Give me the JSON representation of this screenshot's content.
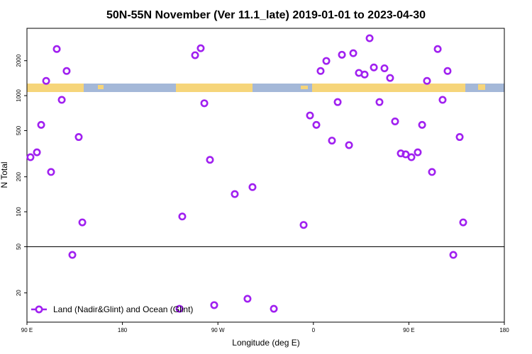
{
  "chart_data": {
    "type": "scatter",
    "title": "50N-55N November (Ver 11.1_late)   2019-01-01 to 2023-04-30",
    "x_label": "Longitude (deg E)",
    "y_label": "N Total",
    "log_y": true,
    "xlim": [
      90,
      540
    ],
    "ylim": [
      11.2,
      3800
    ],
    "xticks": [
      {
        "value": 90,
        "label": "90 E"
      },
      180,
      {
        "value": 270,
        "label": "90 W"
      },
      {
        "value": 360,
        "label": "0"
      },
      {
        "value": 450,
        "label": "90 E"
      },
      {
        "value": 540,
        "label": "180"
      }
    ],
    "yticks": [
      20,
      50,
      100,
      200,
      500,
      1000,
      2000
    ],
    "reference_line": 50,
    "legend": "lower left",
    "series": [
      {
        "name": "Land (Nadir&Glint) and Ocean (Glint)",
        "color": "#a020f0",
        "x": [
          93.3,
          99.4,
          103.4,
          108.1,
          112.7,
          118.1,
          122.8,
          127.4,
          132.8,
          138.8,
          142.2,
          233.8,
          236.4,
          248.5,
          253.8,
          257.2,
          262.5,
          266.5,
          285.9,
          297.9,
          302.6,
          322.7,
          350.8,
          356.8,
          362.8,
          366.8,
          372.2,
          377.5,
          382.9,
          386.9,
          393.6,
          397.6,
          402.9,
          408.3,
          413,
          417,
          422.3,
          427,
          432.3,
          437,
          442.4,
          447,
          452.4,
          458.4,
          462.5,
          467.1,
          471.8,
          477.2,
          481.8,
          486.5,
          491.9,
          497.9,
          501.2
        ],
        "values": [
          295,
          325,
          560,
          1340,
          220,
          2520,
          920,
          1630,
          42.5,
          440,
          81,
          14.6,
          91,
          2230,
          2560,
          860,
          280,
          15.7,
          142,
          17.8,
          163,
          14.6,
          77,
          675,
          560,
          1630,
          1990,
          410,
          880,
          2250,
          375,
          2320,
          1570,
          1520,
          3120,
          1750,
          880,
          1720,
          1420,
          600,
          318,
          312,
          295,
          325,
          560,
          1340,
          220,
          2520,
          920,
          1630,
          42.5,
          440,
          81
        ]
      }
    ]
  }
}
